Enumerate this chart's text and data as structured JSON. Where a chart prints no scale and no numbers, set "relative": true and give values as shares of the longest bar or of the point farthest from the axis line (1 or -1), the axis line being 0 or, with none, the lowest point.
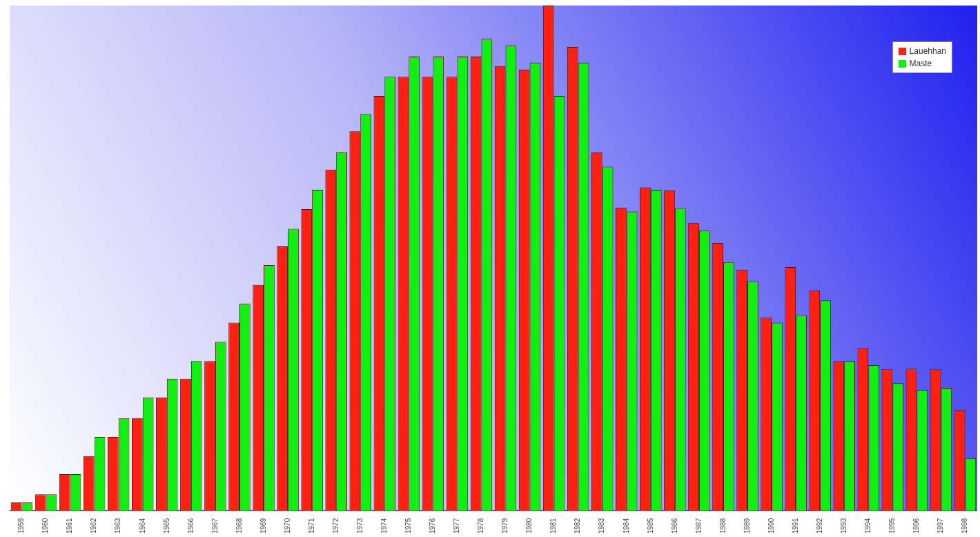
{
  "chart_data": {
    "type": "bar",
    "relative": true,
    "legend": "top right",
    "categories": [
      "1959",
      "1960",
      "1961",
      "1962",
      "1963",
      "1964",
      "1965",
      "1966",
      "1967",
      "1968",
      "1969",
      "1970",
      "1971",
      "1972",
      "1973",
      "1974",
      "1975",
      "1976",
      "1977",
      "1978",
      "1979",
      "1980",
      "1981",
      "1982",
      "1983",
      "1984",
      "1985",
      "1986",
      "1987",
      "1988",
      "1989",
      "1990",
      "1991",
      "1992",
      "1993",
      "1994",
      "1995",
      "1996",
      "1997",
      "1998"
    ],
    "series": [
      {
        "name": "Lauehhan",
        "color": "#ff2010",
        "values": [
          0.016,
          0.032,
          0.072,
          0.108,
          0.146,
          0.183,
          0.224,
          0.261,
          0.296,
          0.372,
          0.447,
          0.523,
          0.597,
          0.675,
          0.751,
          0.821,
          0.859,
          0.859,
          0.859,
          0.899,
          0.88,
          0.873,
          1,
          0.918,
          0.709,
          0.6,
          0.64,
          0.634,
          0.57,
          0.53,
          0.477,
          0.382,
          0.482,
          0.436,
          0.296,
          0.322,
          0.28,
          0.281,
          0.28,
          0.199
        ]
      },
      {
        "name": "Maste",
        "color": "#10f010",
        "values": [
          0.016,
          0.032,
          0.072,
          0.146,
          0.183,
          0.224,
          0.261,
          0.296,
          0.334,
          0.41,
          0.486,
          0.558,
          0.635,
          0.71,
          0.785,
          0.859,
          0.899,
          0.899,
          0.899,
          0.934,
          0.921,
          0.887,
          0.821,
          0.887,
          0.681,
          0.592,
          0.635,
          0.599,
          0.555,
          0.492,
          0.454,
          0.372,
          0.387,
          0.416,
          0.296,
          0.288,
          0.252,
          0.239,
          0.243,
          0.104
        ]
      }
    ]
  }
}
